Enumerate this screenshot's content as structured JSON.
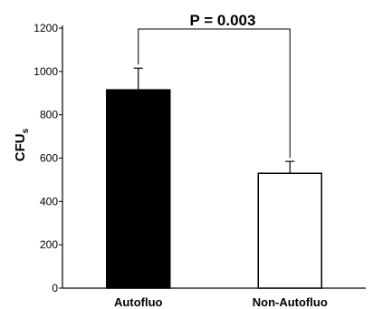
{
  "chart_data": {
    "type": "bar",
    "categories": [
      "Autofluo",
      "Non-Autofluo"
    ],
    "values": [
      915,
      530
    ],
    "errors": [
      100,
      55
    ],
    "bar_colors": [
      "#000000",
      "#ffffff"
    ],
    "ylabel_main": "CFU",
    "ylabel_sub": "s",
    "ylim": [
      0,
      1200
    ],
    "yticks": [
      0,
      200,
      400,
      600,
      800,
      1000,
      1200
    ],
    "annotation": "P = 0.003",
    "grid": false
  }
}
